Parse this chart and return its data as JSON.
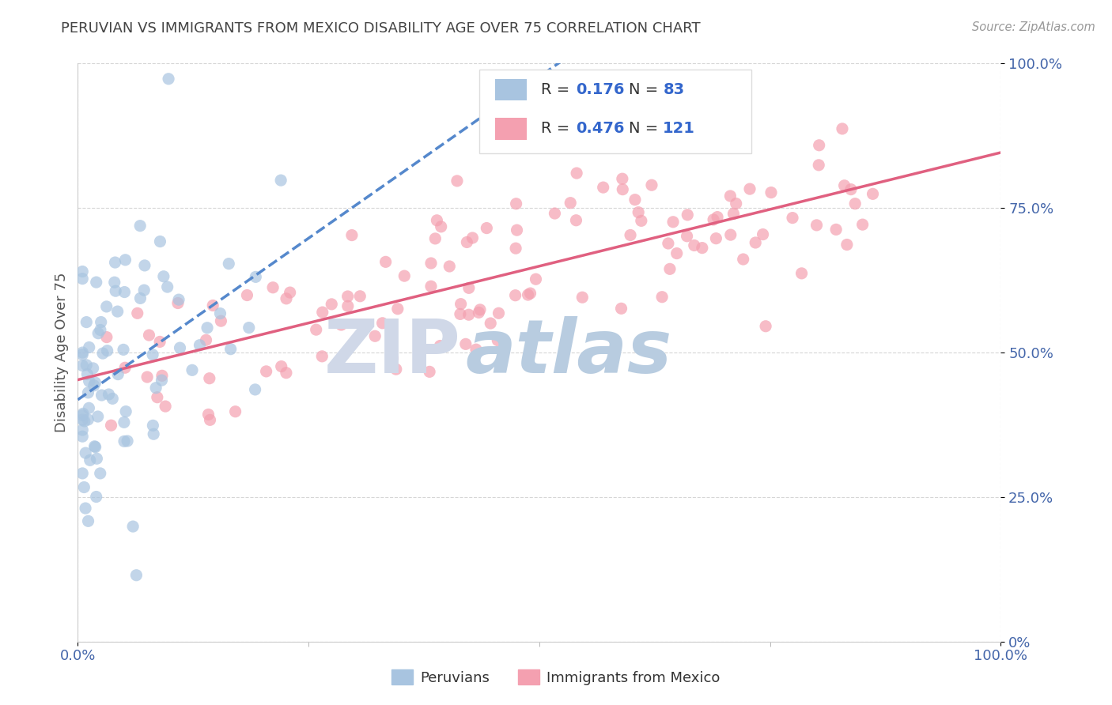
{
  "title": "PERUVIAN VS IMMIGRANTS FROM MEXICO DISABILITY AGE OVER 75 CORRELATION CHART",
  "source": "Source: ZipAtlas.com",
  "ylabel": "Disability Age Over 75",
  "xlim": [
    0,
    1
  ],
  "ylim": [
    0,
    1
  ],
  "r_blue": 0.176,
  "n_blue": 83,
  "r_pink": 0.476,
  "n_pink": 121,
  "legend_label_blue": "Peruvians",
  "legend_label_pink": "Immigrants from Mexico",
  "blue_color": "#a8c4e0",
  "pink_color": "#f4a0b0",
  "blue_line_color": "#5588cc",
  "pink_line_color": "#e06080",
  "title_color": "#444444",
  "axis_label_color": "#4466aa",
  "source_color": "#999999",
  "watermark_zip_color": "#d0d8e8",
  "watermark_atlas_color": "#b8cce0",
  "background_color": "#ffffff",
  "grid_color": "#cccccc",
  "ytick_labels": [
    "0%",
    "25.0%",
    "50.0%",
    "75.0%",
    "100.0%"
  ],
  "ytick_values": [
    0,
    0.25,
    0.5,
    0.75,
    1.0
  ]
}
